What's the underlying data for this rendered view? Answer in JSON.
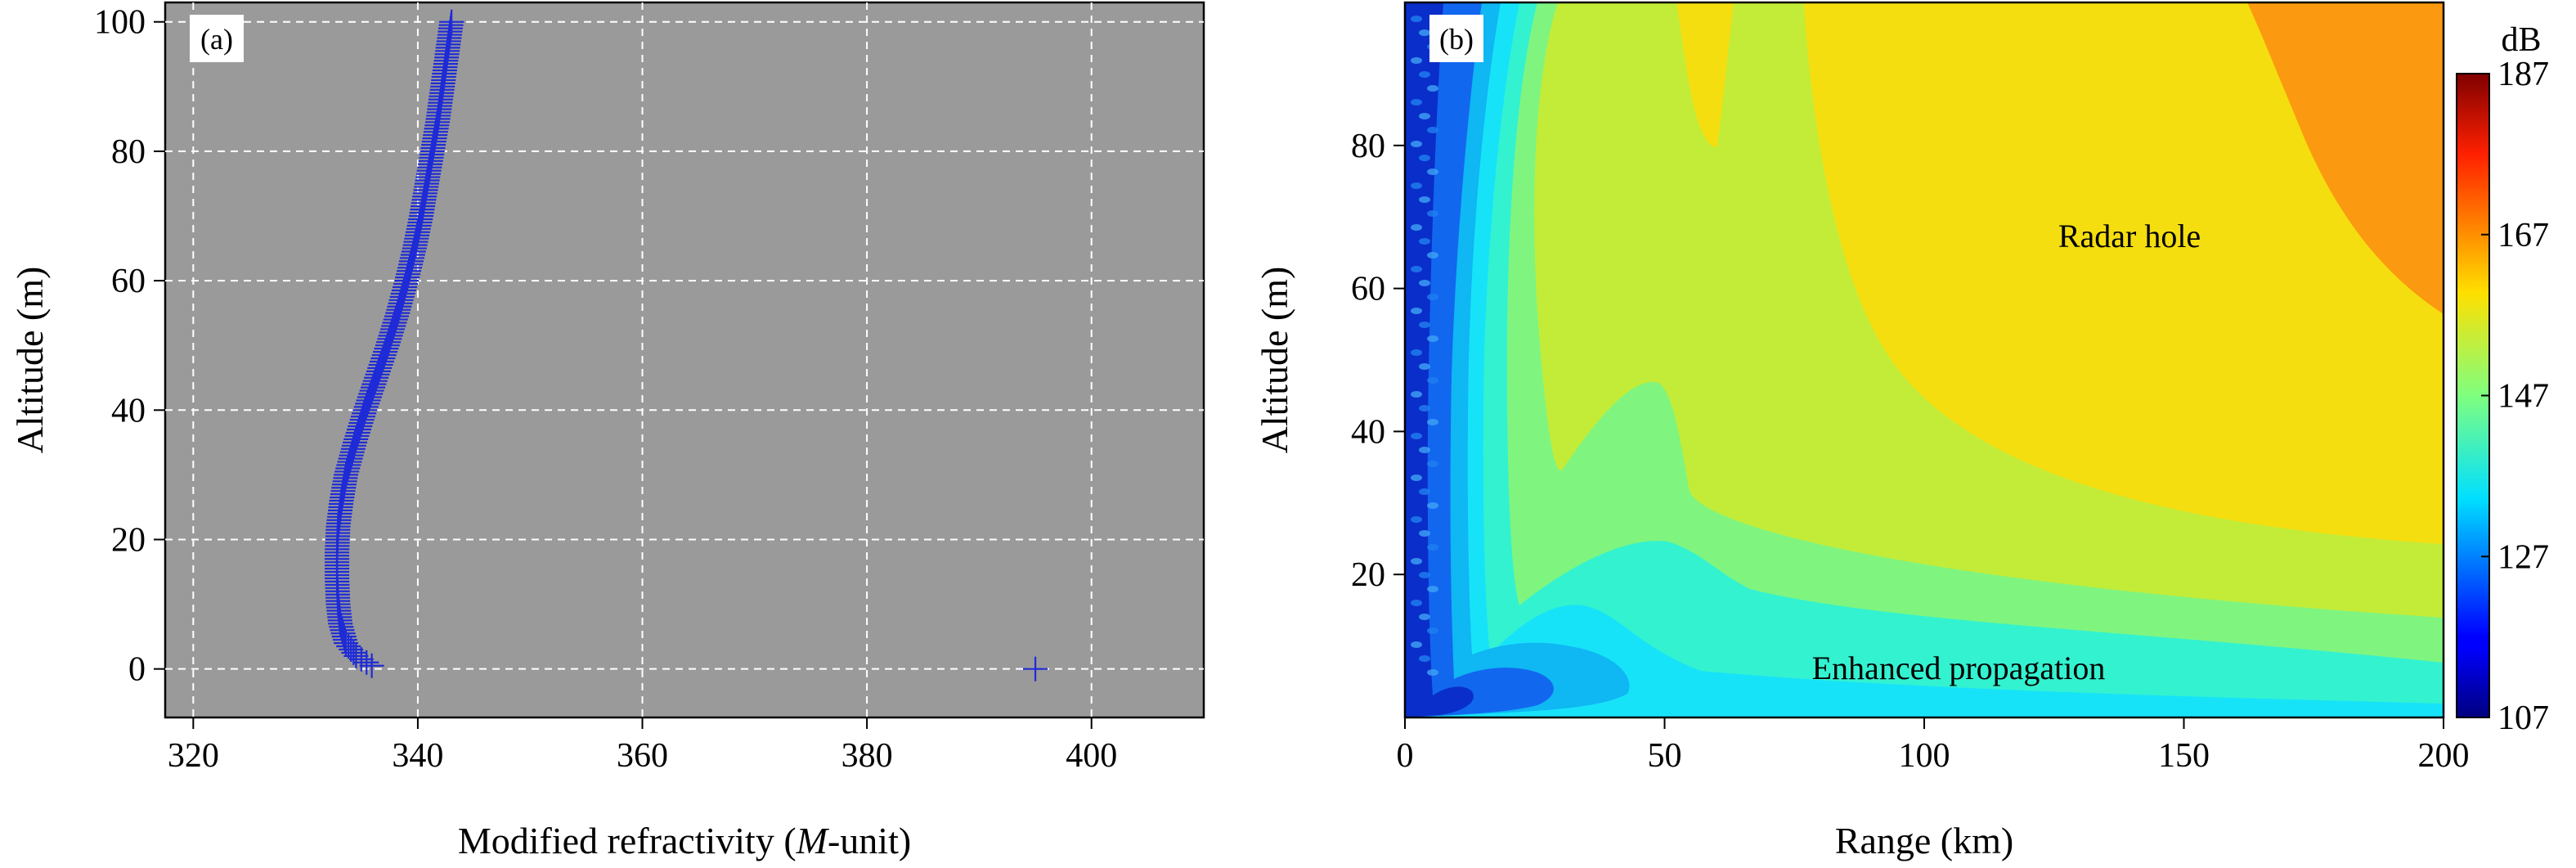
{
  "chart_data": [
    {
      "type": "scatter",
      "panel_label": "(a)",
      "xlabel_prefix": "Modified refractivity (",
      "xlabel_italic": "M",
      "xlabel_suffix": "-unit)",
      "ylabel": "Altitude (m)",
      "xlim": [
        317.5,
        410
      ],
      "ylim": [
        -7.5,
        103
      ],
      "xticks": [
        320,
        340,
        360,
        380,
        400
      ],
      "yticks": [
        0,
        20,
        40,
        60,
        80,
        100
      ],
      "grid": true,
      "background_color": "#9a9a9a",
      "marker": "+",
      "marker_color": "#1f2bd6",
      "profile": [
        {
          "x": 335.9,
          "y": 0.5
        },
        {
          "x": 334.5,
          "y": 2
        },
        {
          "x": 333.6,
          "y": 4
        },
        {
          "x": 333.1,
          "y": 7
        },
        {
          "x": 332.9,
          "y": 10
        },
        {
          "x": 332.8,
          "y": 14
        },
        {
          "x": 332.8,
          "y": 18
        },
        {
          "x": 332.9,
          "y": 22
        },
        {
          "x": 333.2,
          "y": 26
        },
        {
          "x": 333.6,
          "y": 30
        },
        {
          "x": 334.4,
          "y": 35
        },
        {
          "x": 335.3,
          "y": 40
        },
        {
          "x": 336.3,
          "y": 45
        },
        {
          "x": 337.3,
          "y": 50
        },
        {
          "x": 338.2,
          "y": 55
        },
        {
          "x": 339.0,
          "y": 60
        },
        {
          "x": 339.7,
          "y": 65
        },
        {
          "x": 340.3,
          "y": 70
        },
        {
          "x": 340.8,
          "y": 75
        },
        {
          "x": 341.3,
          "y": 80
        },
        {
          "x": 341.8,
          "y": 85
        },
        {
          "x": 342.2,
          "y": 90
        },
        {
          "x": 342.6,
          "y": 95
        },
        {
          "x": 343.0,
          "y": 100
        }
      ],
      "outlier": {
        "x": 395,
        "y": 0
      }
    },
    {
      "type": "heatmap",
      "panel_label": "(b)",
      "xlabel": "Range (km)",
      "ylabel": "Altitude (m)",
      "xlim": [
        0,
        200
      ],
      "ylim": [
        0,
        100
      ],
      "xticks": [
        0,
        50,
        100,
        150,
        200
      ],
      "yticks": [
        20,
        40,
        60,
        80
      ],
      "colorbar": {
        "unit": "dB",
        "min": 107,
        "max": 187,
        "ticks": [
          107,
          127,
          147,
          167,
          187
        ],
        "colormap": "jet"
      },
      "annotations": [
        {
          "text": "Radar hole",
          "x": 140,
          "y": 66
        },
        {
          "text": "Enhanced propagation",
          "x": 105,
          "y": 0.5
        }
      ]
    }
  ]
}
